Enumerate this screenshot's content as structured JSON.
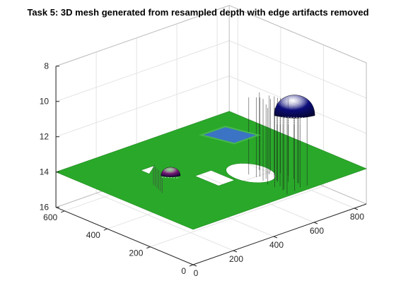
{
  "chart_data": {
    "type": "surface3d",
    "title": "Task 5: 3D mesh generated from resampled depth with edge artifacts removed",
    "xlabel": "",
    "ylabel": "",
    "zlabel": "",
    "x_ticks": [
      0,
      200,
      400,
      600
    ],
    "y_ticks": [
      0,
      200,
      400,
      600,
      800
    ],
    "z_ticks": [
      8,
      10,
      12,
      14,
      16
    ],
    "xlim": [
      0,
      640
    ],
    "ylim": [
      0,
      860
    ],
    "zlim": [
      8,
      16
    ],
    "z_reversed": true,
    "grid": true,
    "box": true,
    "surfaces": [
      {
        "name": "floor plane",
        "depth": 14,
        "color": "#2aa82a",
        "extent": {
          "x": [
            0,
            640
          ],
          "y": [
            0,
            860
          ]
        }
      },
      {
        "name": "floating panel",
        "depth_near": 10.3,
        "depth_far": 10.0,
        "color": "#3b74c4",
        "edge_color": "#47b84a",
        "extent": {
          "x": [
            5,
            160
          ],
          "y": [
            210,
            330
          ]
        }
      },
      {
        "name": "dome object",
        "depth_top": 8.6,
        "depth_base": 9.8,
        "color": "#0c0c7a",
        "center": {
          "x": 25,
          "y": 530
        },
        "radius": 95
      },
      {
        "name": "small dome object",
        "depth_top": 13.1,
        "depth_base": 13.6,
        "color": "#7b1a78",
        "center": {
          "x": 330,
          "y": 240
        },
        "radius": 45
      }
    ],
    "holes_in_floor": [
      {
        "shape": "ellipse",
        "center": {
          "x": 220,
          "y": 520
        },
        "radius": 90
      },
      {
        "shape": "rectangle",
        "x": [
          210,
          320
        ],
        "y": [
          350,
          430
        ]
      },
      {
        "shape": "triangle",
        "points": [
          [
            430,
            240
          ],
          [
            470,
            310
          ],
          [
            470,
            240
          ]
        ]
      }
    ],
    "edge_artifacts_color": "#1a1a1a"
  }
}
